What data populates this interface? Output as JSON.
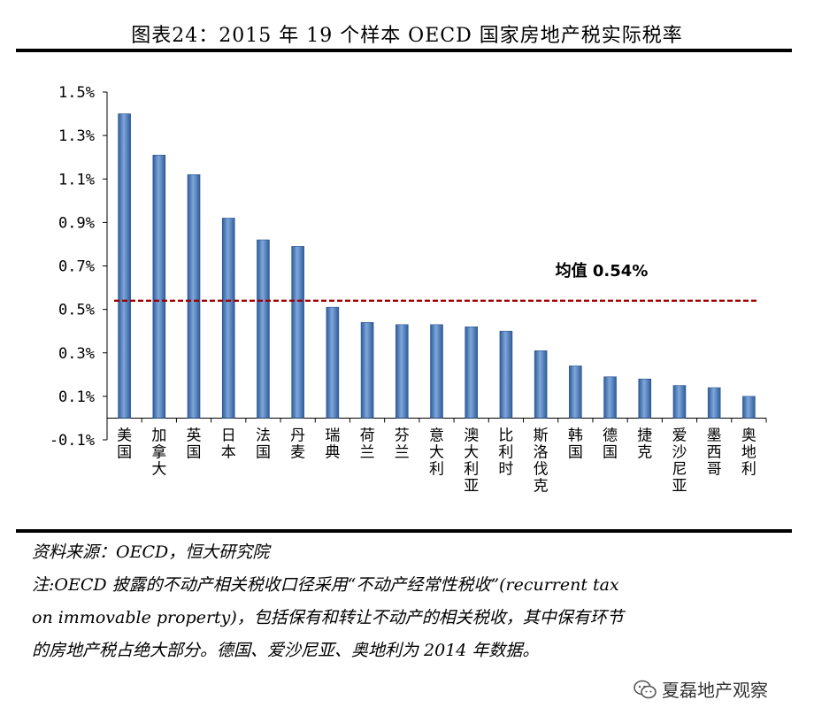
{
  "title": "图表24：2015 年 19 个样本 OECD 国家房地产税实际税率",
  "chart_data": {
    "type": "bar",
    "categories": [
      "美国",
      "加拿大",
      "英国",
      "日本",
      "法国",
      "丹麦",
      "瑞典",
      "荷兰",
      "芬兰",
      "意大利",
      "澳大利亚",
      "比利时",
      "斯洛伐克",
      "韩国",
      "德国",
      "捷克",
      "爱沙尼亚",
      "墨西哥",
      "奥地利"
    ],
    "values": [
      1.4,
      1.21,
      1.12,
      0.92,
      0.82,
      0.79,
      0.51,
      0.44,
      0.43,
      0.43,
      0.42,
      0.4,
      0.31,
      0.24,
      0.19,
      0.18,
      0.15,
      0.14,
      0.1
    ],
    "ylim": [
      -0.1,
      1.5
    ],
    "yticks": [
      -0.1,
      0.1,
      0.3,
      0.5,
      0.7,
      0.9,
      1.1,
      1.3,
      1.5
    ],
    "ytick_labels": [
      "-0.1%",
      "0.1%",
      "0.3%",
      "0.5%",
      "0.7%",
      "0.9%",
      "1.1%",
      "1.3%",
      "1.5%"
    ],
    "mean_value": 0.54,
    "mean_label": "均值 0.54%",
    "bar_color": "#4F7FBF",
    "mean_color": "#A00000",
    "grid": false
  },
  "notes": {
    "source": "资料来源：OECD，恒大研究院",
    "note_line1": "注:OECD 披露的不动产相关税收口径采用“不动产经常性税收”(recurrent tax",
    "note_line2": "on immovable property)，包括保有和转让不动产的相关税收，其中保有环节",
    "note_line3": "的房地产税占绝大部分。德国、爱沙尼亚、奥地利为 2014 年数据。"
  },
  "watermark": {
    "icon": "wechat-icon",
    "text": "夏磊地产观察"
  }
}
